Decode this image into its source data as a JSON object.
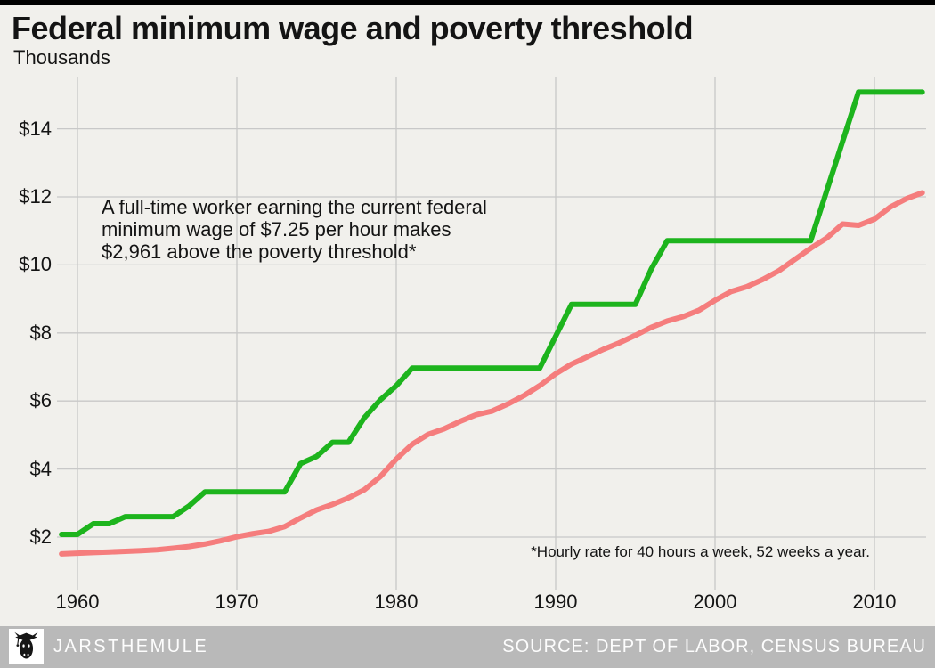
{
  "colors": {
    "minimum_wage_line": "#1db41d",
    "poverty_threshold_line": "#f57d7d",
    "background": "#f1f0ec",
    "gridline": "#c8c8c8",
    "top_bar": "#000000",
    "footer_bg": "#b9b9b9",
    "footer_text": "#fdfdfd",
    "text": "#141414"
  },
  "chart_data": {
    "type": "line",
    "title": "Federal minimum wage and poverty threshold",
    "subtitle": "Thousands",
    "grid": true,
    "legend": "none",
    "xlim": [
      1958.9,
      2013.3
    ],
    "ylim": [
      1.3,
      15.7
    ],
    "x_ticks": [
      1960,
      1970,
      1980,
      1990,
      2000,
      2010
    ],
    "x_tick_labels": [
      "1960",
      "1970",
      "1980",
      "1990",
      "2000",
      "2010"
    ],
    "y_ticks": [
      2,
      4,
      6,
      8,
      10,
      12,
      14
    ],
    "y_tick_labels": [
      "$2",
      "$4",
      "$6",
      "$8",
      "$10",
      "$12",
      "$14"
    ],
    "x": [
      1959,
      1960,
      1961,
      1962,
      1963,
      1964,
      1965,
      1966,
      1967,
      1968,
      1969,
      1970,
      1971,
      1972,
      1973,
      1974,
      1975,
      1976,
      1977,
      1978,
      1979,
      1980,
      1981,
      1982,
      1983,
      1984,
      1985,
      1986,
      1987,
      1988,
      1989,
      1990,
      1991,
      1992,
      1993,
      1994,
      1995,
      1996,
      1997,
      1998,
      1999,
      2000,
      2001,
      2002,
      2003,
      2004,
      2005,
      2006,
      2007,
      2008,
      2009,
      2010,
      2011,
      2012,
      2013
    ],
    "series": [
      {
        "id": "minimum-wage-line",
        "name": "Federal minimum wage (annualized, thousands)",
        "color": "#1db41d",
        "values": [
          2.08,
          2.08,
          2.392,
          2.392,
          2.6,
          2.6,
          2.6,
          2.6,
          2.912,
          3.328,
          3.328,
          3.328,
          3.328,
          3.328,
          3.328,
          4.16,
          4.368,
          4.784,
          4.784,
          5.512,
          6.032,
          6.448,
          6.968,
          6.968,
          6.968,
          6.968,
          6.968,
          6.968,
          6.968,
          6.968,
          6.968,
          7.904,
          8.84,
          8.84,
          8.84,
          8.84,
          8.84,
          9.88,
          10.712,
          10.712,
          10.712,
          10.712,
          10.712,
          10.712,
          10.712,
          10.712,
          10.712,
          10.712,
          12.168,
          13.624,
          15.08,
          15.08,
          15.08,
          15.08,
          15.08
        ]
      },
      {
        "id": "poverty-threshold-line",
        "name": "Poverty threshold (thousands)",
        "color": "#f57d7d",
        "values": [
          1.505,
          1.526,
          1.545,
          1.562,
          1.581,
          1.601,
          1.626,
          1.674,
          1.722,
          1.797,
          1.893,
          2.01,
          2.098,
          2.168,
          2.307,
          2.562,
          2.797,
          2.959,
          3.152,
          3.392,
          3.778,
          4.29,
          4.729,
          5.019,
          5.18,
          5.4,
          5.593,
          5.701,
          5.909,
          6.155,
          6.451,
          6.8,
          7.086,
          7.299,
          7.518,
          7.71,
          7.929,
          8.163,
          8.35,
          8.48,
          8.667,
          8.959,
          9.214,
          9.359,
          9.573,
          9.827,
          10.16,
          10.488,
          10.787,
          11.201,
          11.161,
          11.344,
          11.702,
          11.945,
          12.119
        ]
      }
    ],
    "annotation": {
      "line1": "A full-time worker earning the current federal",
      "line2": "minimum wage of $7.25 per hour makes",
      "line3": "$2,961 above the poverty threshold*"
    },
    "footnote": "*Hourly rate for 40 hours a week, 52 weeks a year."
  },
  "footer": {
    "brand": "JARSTHEMULE",
    "source": "SOURCE: DEPT OF LABOR, CENSUS BUREAU",
    "logo_icon": "mule-head-icon"
  }
}
